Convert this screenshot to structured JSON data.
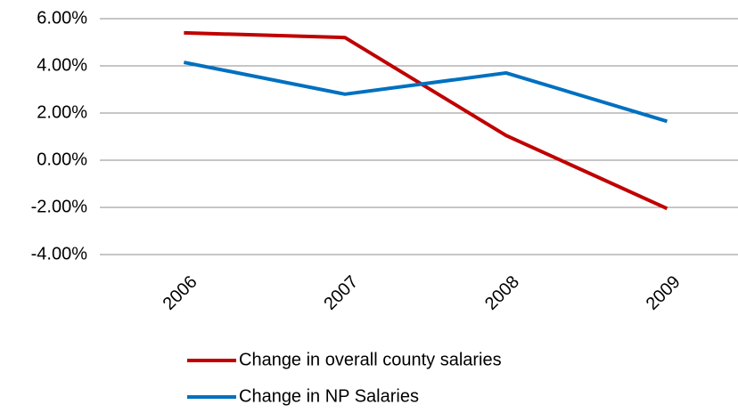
{
  "chart_data": {
    "type": "line",
    "categories": [
      "2006",
      "2007",
      "2008",
      "2009"
    ],
    "series": [
      {
        "name": "Change in overall county salaries",
        "color": "#c00000",
        "values": [
          5.4,
          5.2,
          1.05,
          -2.05
        ]
      },
      {
        "name": "Change in NP Salaries",
        "color": "#0070c0",
        "values": [
          4.15,
          2.8,
          3.7,
          1.65
        ]
      }
    ],
    "ylim": [
      -4,
      6
    ],
    "yticks": [
      {
        "value": -4,
        "label": "-4.00%"
      },
      {
        "value": -2,
        "label": "-2.00%"
      },
      {
        "value": 0,
        "label": "0.00%"
      },
      {
        "value": 2,
        "label": "2.00%"
      },
      {
        "value": 4,
        "label": "4.00%"
      },
      {
        "value": 6,
        "label": "6.00%"
      }
    ],
    "grid": true,
    "legend": "bottom"
  }
}
